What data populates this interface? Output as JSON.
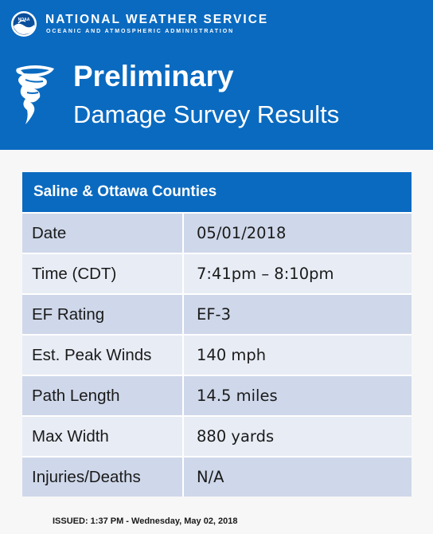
{
  "header": {
    "agency": "NATIONAL WEATHER SERVICE",
    "agency_sub": "OCEANIC AND ATMOSPHERIC ADMINISTRATION",
    "logo_icon": "noaa-logo-icon",
    "tornado_icon": "tornado-icon",
    "title_main": "Preliminary",
    "title_sub": "Damage Survey Results",
    "color": "#0a6ac0"
  },
  "table": {
    "heading": "Saline & Ottawa Counties",
    "rows": [
      {
        "label": "Date",
        "value": "05/01/2018"
      },
      {
        "label": "Time (CDT)",
        "value": "7:41pm – 8:10pm"
      },
      {
        "label": "EF Rating",
        "value": "EF-3"
      },
      {
        "label": "Est. Peak Winds",
        "value": "140 mph"
      },
      {
        "label": "Path Length",
        "value": "14.5 miles"
      },
      {
        "label": "Max Width",
        "value": "880 yards"
      },
      {
        "label": "Injuries/Deaths",
        "value": "N/A"
      }
    ]
  },
  "footer": {
    "issued": "ISSUED: 1:37 PM - Wednesday, May 02, 2018"
  }
}
